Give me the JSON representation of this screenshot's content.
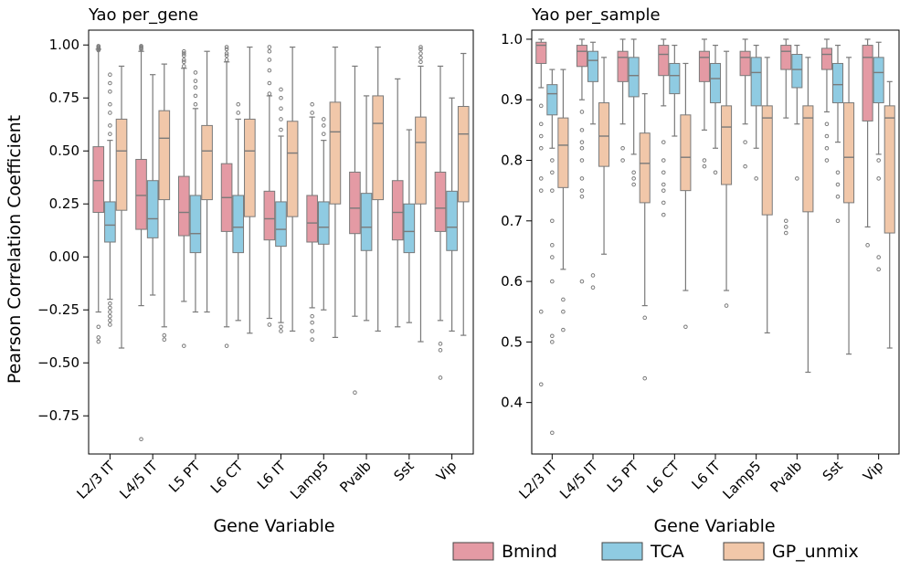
{
  "figure": {
    "shared_ylabel": "Pearson Correlation Coefficient",
    "legend": [
      {
        "label": "Bmind",
        "color": "#e49aa4"
      },
      {
        "label": "TCA",
        "color": "#8fcbe2"
      },
      {
        "label": "GP_unmix",
        "color": "#f1c7a9"
      }
    ]
  },
  "chart_data": [
    {
      "type": "box",
      "title": "Yao per_gene",
      "xlabel": "Gene Variable",
      "ylabel": "Pearson Correlation Coefficient",
      "ylim": [
        -0.93,
        1.07
      ],
      "yticks": [
        1.0,
        0.75,
        0.5,
        0.25,
        0.0,
        -0.25,
        -0.5,
        -0.75
      ],
      "ytick_labels": [
        "1.00",
        "0.75",
        "0.50",
        "0.25",
        "0.00",
        "−0.25",
        "−0.50",
        "−0.75"
      ],
      "categories": [
        "L2/3 IT",
        "L4/5 IT",
        "L5 PT",
        "L6 CT",
        "L6 IT",
        "Lamp5",
        "Pvalb",
        "Sst",
        "Vip"
      ],
      "series": [
        {
          "name": "Bmind",
          "color": "#e49aa4",
          "boxes": [
            {
              "q1": 0.21,
              "median": 0.36,
              "q3": 0.52,
              "whislo": -0.26,
              "whishi": 0.98,
              "fliers": [
                -0.38,
                -0.4,
                -0.33,
                0.985,
                0.99,
                0.995,
                0.98,
                0.975
              ]
            },
            {
              "q1": 0.13,
              "median": 0.29,
              "q3": 0.46,
              "whislo": -0.23,
              "whishi": 0.97,
              "fliers": [
                -0.86,
                0.98,
                0.99,
                0.995,
                0.985
              ]
            },
            {
              "q1": 0.1,
              "median": 0.21,
              "q3": 0.38,
              "whislo": -0.21,
              "whishi": 0.89,
              "fliers": [
                -0.42,
                0.9,
                0.92,
                0.93,
                0.95,
                0.96,
                0.97
              ]
            },
            {
              "q1": 0.12,
              "median": 0.28,
              "q3": 0.44,
              "whislo": -0.33,
              "whishi": 0.92,
              "fliers": [
                -0.42,
                0.93,
                0.95,
                0.96,
                0.98,
                0.99
              ]
            },
            {
              "q1": 0.08,
              "median": 0.18,
              "q3": 0.31,
              "whislo": -0.29,
              "whishi": 0.76,
              "fliers": [
                -0.32,
                0.77,
                0.82,
                0.88,
                0.93,
                0.97,
                0.99
              ]
            },
            {
              "q1": 0.07,
              "median": 0.16,
              "q3": 0.29,
              "whislo": -0.24,
              "whishi": 0.66,
              "fliers": [
                -0.28,
                -0.31,
                -0.35,
                -0.39,
                0.68,
                0.72
              ]
            },
            {
              "q1": 0.11,
              "median": 0.23,
              "q3": 0.4,
              "whislo": -0.28,
              "whishi": 0.9,
              "fliers": [
                -0.64
              ]
            },
            {
              "q1": 0.08,
              "median": 0.21,
              "q3": 0.36,
              "whislo": -0.33,
              "whishi": 0.84,
              "fliers": []
            },
            {
              "q1": 0.12,
              "median": 0.23,
              "q3": 0.4,
              "whislo": -0.3,
              "whishi": 0.9,
              "fliers": [
                -0.41,
                -0.44,
                -0.57
              ]
            }
          ]
        },
        {
          "name": "TCA",
          "color": "#8fcbe2",
          "boxes": [
            {
              "q1": 0.07,
              "median": 0.15,
              "q3": 0.26,
              "whislo": -0.2,
              "whishi": 0.55,
              "fliers": [
                -0.22,
                -0.24,
                -0.26,
                -0.28,
                -0.3,
                -0.32,
                0.58,
                0.62,
                0.68,
                0.72,
                0.78,
                0.82,
                0.86
              ]
            },
            {
              "q1": 0.09,
              "median": 0.18,
              "q3": 0.36,
              "whislo": -0.18,
              "whishi": 0.86,
              "fliers": []
            },
            {
              "q1": 0.02,
              "median": 0.11,
              "q3": 0.29,
              "whislo": -0.26,
              "whishi": 0.7,
              "fliers": [
                0.72,
                0.76,
                0.8,
                0.83,
                0.87
              ]
            },
            {
              "q1": 0.02,
              "median": 0.14,
              "q3": 0.29,
              "whislo": -0.3,
              "whishi": 0.65,
              "fliers": [
                0.68,
                0.72
              ]
            },
            {
              "q1": 0.05,
              "median": 0.13,
              "q3": 0.26,
              "whislo": -0.31,
              "whishi": 0.57,
              "fliers": [
                -0.33,
                -0.35,
                0.6,
                0.65,
                0.7,
                0.75,
                0.79
              ]
            },
            {
              "q1": 0.06,
              "median": 0.14,
              "q3": 0.26,
              "whislo": -0.25,
              "whishi": 0.55,
              "fliers": [
                0.58,
                0.62,
                0.65
              ]
            },
            {
              "q1": 0.03,
              "median": 0.14,
              "q3": 0.3,
              "whislo": -0.3,
              "whishi": 0.76,
              "fliers": []
            },
            {
              "q1": 0.02,
              "median": 0.12,
              "q3": 0.25,
              "whislo": -0.31,
              "whishi": 0.6,
              "fliers": []
            },
            {
              "q1": 0.03,
              "median": 0.14,
              "q3": 0.31,
              "whislo": -0.35,
              "whishi": 0.75,
              "fliers": []
            }
          ]
        },
        {
          "name": "GP_unmix",
          "color": "#f1c7a9",
          "boxes": [
            {
              "q1": 0.22,
              "median": 0.5,
              "q3": 0.65,
              "whislo": -0.43,
              "whishi": 0.9,
              "fliers": []
            },
            {
              "q1": 0.27,
              "median": 0.56,
              "q3": 0.69,
              "whislo": -0.33,
              "whishi": 0.91,
              "fliers": [
                -0.37,
                -0.39
              ]
            },
            {
              "q1": 0.27,
              "median": 0.5,
              "q3": 0.62,
              "whislo": -0.26,
              "whishi": 0.97,
              "fliers": []
            },
            {
              "q1": 0.19,
              "median": 0.5,
              "q3": 0.65,
              "whislo": -0.36,
              "whishi": 0.99,
              "fliers": []
            },
            {
              "q1": 0.19,
              "median": 0.49,
              "q3": 0.64,
              "whislo": -0.35,
              "whishi": 0.99,
              "fliers": []
            },
            {
              "q1": 0.25,
              "median": 0.59,
              "q3": 0.73,
              "whislo": -0.38,
              "whishi": 0.99,
              "fliers": []
            },
            {
              "q1": 0.27,
              "median": 0.63,
              "q3": 0.76,
              "whislo": -0.35,
              "whishi": 0.99,
              "fliers": []
            },
            {
              "q1": 0.25,
              "median": 0.54,
              "q3": 0.66,
              "whislo": -0.4,
              "whishi": 0.9,
              "fliers": [
                0.92,
                0.94,
                0.96,
                0.98,
                0.99
              ]
            },
            {
              "q1": 0.26,
              "median": 0.58,
              "q3": 0.71,
              "whislo": -0.37,
              "whishi": 0.96,
              "fliers": []
            }
          ]
        }
      ]
    },
    {
      "type": "box",
      "title": "Yao per_sample",
      "xlabel": "Gene Variable",
      "ylabel": "",
      "ylim": [
        0.315,
        1.015
      ],
      "yticks": [
        1.0,
        0.9,
        0.8,
        0.7,
        0.6,
        0.5,
        0.4
      ],
      "ytick_labels": [
        "1.0",
        "0.9",
        "0.8",
        "0.7",
        "0.6",
        "0.5",
        "0.4"
      ],
      "categories": [
        "L2/3 IT",
        "L4/5 IT",
        "L5 PT",
        "L6 CT",
        "L6 IT",
        "Lamp5",
        "Pvalb",
        "Sst",
        "Vip"
      ],
      "series": [
        {
          "name": "Bmind",
          "color": "#e49aa4",
          "boxes": [
            {
              "q1": 0.96,
              "median": 0.99,
              "q3": 0.995,
              "whislo": 0.92,
              "whishi": 1.0,
              "fliers": [
                0.89,
                0.86,
                0.84,
                0.82,
                0.77,
                0.75,
                0.55,
                0.43
              ]
            },
            {
              "q1": 0.955,
              "median": 0.98,
              "q3": 0.99,
              "whislo": 0.9,
              "whishi": 1.0,
              "fliers": [
                0.88,
                0.85,
                0.83,
                0.82,
                0.8,
                0.77,
                0.75,
                0.74,
                0.6
              ]
            },
            {
              "q1": 0.93,
              "median": 0.97,
              "q3": 0.98,
              "whislo": 0.86,
              "whishi": 1.0,
              "fliers": [
                0.82,
                0.8
              ]
            },
            {
              "q1": 0.94,
              "median": 0.975,
              "q3": 0.99,
              "whislo": 0.89,
              "whishi": 1.0,
              "fliers": [
                0.83,
                0.8,
                0.78,
                0.76,
                0.75,
                0.73,
                0.71
              ]
            },
            {
              "q1": 0.93,
              "median": 0.97,
              "q3": 0.98,
              "whislo": 0.85,
              "whishi": 1.0,
              "fliers": [
                0.8,
                0.79
              ]
            },
            {
              "q1": 0.94,
              "median": 0.97,
              "q3": 0.98,
              "whislo": 0.86,
              "whishi": 1.0,
              "fliers": [
                0.83,
                0.79
              ]
            },
            {
              "q1": 0.95,
              "median": 0.98,
              "q3": 0.99,
              "whislo": 0.87,
              "whishi": 1.0,
              "fliers": [
                0.7,
                0.69,
                0.68
              ]
            },
            {
              "q1": 0.95,
              "median": 0.975,
              "q3": 0.985,
              "whislo": 0.88,
              "whishi": 1.0,
              "fliers": [
                0.86,
                0.84,
                0.82,
                0.8
              ]
            },
            {
              "q1": 0.865,
              "median": 0.97,
              "q3": 0.99,
              "whislo": 0.69,
              "whishi": 1.0,
              "fliers": [
                0.66
              ]
            }
          ]
        },
        {
          "name": "TCA",
          "color": "#8fcbe2",
          "boxes": [
            {
              "q1": 0.875,
              "median": 0.91,
              "q3": 0.925,
              "whislo": 0.82,
              "whishi": 0.95,
              "fliers": [
                0.8,
                0.78,
                0.75,
                0.7,
                0.66,
                0.64,
                0.6,
                0.51,
                0.5,
                0.35
              ]
            },
            {
              "q1": 0.93,
              "median": 0.965,
              "q3": 0.98,
              "whislo": 0.86,
              "whishi": 0.995,
              "fliers": [
                0.61,
                0.59
              ]
            },
            {
              "q1": 0.905,
              "median": 0.94,
              "q3": 0.97,
              "whislo": 0.81,
              "whishi": 1.0,
              "fliers": [
                0.78,
                0.77,
                0.76
              ]
            },
            {
              "q1": 0.91,
              "median": 0.94,
              "q3": 0.96,
              "whislo": 0.84,
              "whishi": 0.99,
              "fliers": []
            },
            {
              "q1": 0.895,
              "median": 0.935,
              "q3": 0.96,
              "whislo": 0.82,
              "whishi": 0.99,
              "fliers": [
                0.78
              ]
            },
            {
              "q1": 0.89,
              "median": 0.945,
              "q3": 0.97,
              "whislo": 0.82,
              "whishi": 0.99,
              "fliers": [
                0.77
              ]
            },
            {
              "q1": 0.92,
              "median": 0.95,
              "q3": 0.975,
              "whislo": 0.86,
              "whishi": 0.99,
              "fliers": [
                0.77
              ]
            },
            {
              "q1": 0.895,
              "median": 0.925,
              "q3": 0.96,
              "whislo": 0.83,
              "whishi": 0.99,
              "fliers": [
                0.78,
                0.76,
                0.74,
                0.7
              ]
            },
            {
              "q1": 0.895,
              "median": 0.945,
              "q3": 0.97,
              "whislo": 0.81,
              "whishi": 0.995,
              "fliers": [
                0.8,
                0.77,
                0.64,
                0.62
              ]
            }
          ]
        },
        {
          "name": "GP_unmix",
          "color": "#f1c7a9",
          "boxes": [
            {
              "q1": 0.755,
              "median": 0.825,
              "q3": 0.87,
              "whislo": 0.62,
              "whishi": 0.95,
              "fliers": [
                0.57,
                0.55,
                0.52
              ]
            },
            {
              "q1": 0.79,
              "median": 0.84,
              "q3": 0.895,
              "whislo": 0.645,
              "whishi": 0.97,
              "fliers": []
            },
            {
              "q1": 0.73,
              "median": 0.795,
              "q3": 0.845,
              "whislo": 0.56,
              "whishi": 0.91,
              "fliers": [
                0.54,
                0.44
              ]
            },
            {
              "q1": 0.75,
              "median": 0.805,
              "q3": 0.875,
              "whislo": 0.585,
              "whishi": 0.96,
              "fliers": [
                0.525
              ]
            },
            {
              "q1": 0.76,
              "median": 0.855,
              "q3": 0.89,
              "whislo": 0.585,
              "whishi": 0.98,
              "fliers": [
                0.56
              ]
            },
            {
              "q1": 0.71,
              "median": 0.87,
              "q3": 0.89,
              "whislo": 0.515,
              "whishi": 0.97,
              "fliers": []
            },
            {
              "q1": 0.715,
              "median": 0.87,
              "q3": 0.89,
              "whislo": 0.45,
              "whishi": 0.97,
              "fliers": []
            },
            {
              "q1": 0.73,
              "median": 0.805,
              "q3": 0.895,
              "whislo": 0.48,
              "whishi": 0.97,
              "fliers": []
            },
            {
              "q1": 0.68,
              "median": 0.87,
              "q3": 0.89,
              "whislo": 0.49,
              "whishi": 0.93,
              "fliers": []
            }
          ]
        }
      ]
    }
  ]
}
